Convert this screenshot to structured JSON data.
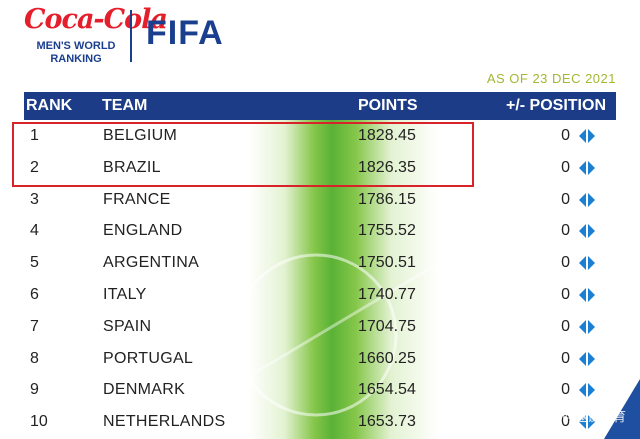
{
  "brand": {
    "sponsor": "Coca-Cola",
    "ranking_line1": "MEN'S WORLD",
    "ranking_line2": "RANKING",
    "org": "FIFA"
  },
  "as_of": "AS OF 23 DEC 2021",
  "columns": {
    "rank": "RANK",
    "team": "TEAM",
    "points": "POINTS",
    "position": "+/- POSITION"
  },
  "rows": [
    {
      "rank": "1",
      "team": "BELGIUM",
      "points": "1828.45",
      "change": "0"
    },
    {
      "rank": "2",
      "team": "BRAZIL",
      "points": "1826.35",
      "change": "0"
    },
    {
      "rank": "3",
      "team": "FRANCE",
      "points": "1786.15",
      "change": "0"
    },
    {
      "rank": "4",
      "team": "ENGLAND",
      "points": "1755.52",
      "change": "0"
    },
    {
      "rank": "5",
      "team": "ARGENTINA",
      "points": "1750.51",
      "change": "0"
    },
    {
      "rank": "6",
      "team": "ITALY",
      "points": "1740.77",
      "change": "0"
    },
    {
      "rank": "7",
      "team": "SPAIN",
      "points": "1704.75",
      "change": "0"
    },
    {
      "rank": "8",
      "team": "PORTUGAL",
      "points": "1660.25",
      "change": "0"
    },
    {
      "rank": "9",
      "team": "DENMARK",
      "points": "1654.54",
      "change": "0"
    },
    {
      "rank": "10",
      "team": "NETHERLANDS",
      "points": "1653.73",
      "change": "0"
    }
  ],
  "watermark": "头条号 / 何趣谈体育",
  "colors": {
    "brand_blue": "#1d3c87",
    "coca_red": "#e41e2b",
    "highlight_red": "#d8232a",
    "date_green": "#a2b834",
    "pitch_green": "#5ab236",
    "arrow_blue": "#1b7fd4"
  }
}
